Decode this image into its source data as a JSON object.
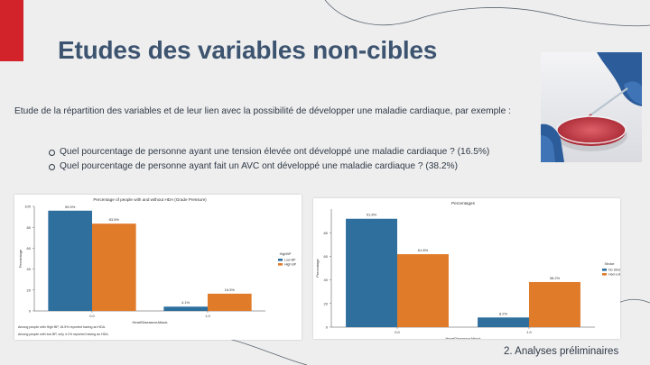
{
  "slide": {
    "title": "Etudes des variables non-cibles",
    "intro": "Etude de la répartition des variables et de leur lien avec la possibilité de développer une maladie cardiaque, par exemple :",
    "bullets": [
      "Quel pourcentage de personne ayant une tension élevée ont développé une maladie cardiaque ? (16.5%)",
      "Quel pourcentage de personne ayant fait un AVC ont développé une maladie cardiaque ? (38.2%)"
    ],
    "footer": "2. Analyses préliminaires",
    "accent_color": "#d2232a",
    "title_color": "#3d5470"
  },
  "photo": {
    "icon": "lab-petri-dish-photo"
  },
  "chart_data": [
    {
      "type": "bar",
      "title": "Percentage of people with and without HDA (Grade Pressure)",
      "xlabel": "HeartDiseaseorAttack",
      "ylabel": "Percentage",
      "categories": [
        "0.0",
        "1.0"
      ],
      "ylim": [
        0,
        100
      ],
      "yticks": [
        0,
        20,
        40,
        60,
        80,
        100
      ],
      "legend_title": "HighBP",
      "legend_position": "right",
      "series": [
        {
          "name": "Low BP",
          "color": "#2e6f9e",
          "values": [
            95.9,
            4.1
          ],
          "labels": [
            "95.9%",
            "4.1%"
          ]
        },
        {
          "name": "High BP",
          "color": "#e07b2a",
          "values": [
            83.5,
            16.5
          ],
          "labels": [
            "83.5%",
            "16.5%"
          ]
        }
      ],
      "notes": [
        "Among people with High BP, 16.5% reported having an HDA.",
        "Among people with low BP, only 4.1% reported having an HDA."
      ]
    },
    {
      "type": "bar",
      "title": "Percentages",
      "xlabel": "HeartDiseaseorAttack",
      "ylabel": "Percentage",
      "categories": [
        "0.0",
        "1.0"
      ],
      "ylim": [
        0,
        100
      ],
      "yticks": [
        0,
        20,
        40,
        60,
        80
      ],
      "legend_title": "Stroke",
      "legend_position": "right",
      "series": [
        {
          "name": "No Stroke",
          "color": "#2e6f9e",
          "values": [
            91.8,
            8.2
          ],
          "labels": [
            "91.8%",
            "8.2%"
          ]
        },
        {
          "name": "Had a stroke",
          "color": "#e07b2a",
          "values": [
            61.8,
            38.2
          ],
          "labels": [
            "61.8%",
            "38.2%"
          ]
        }
      ],
      "notes": []
    }
  ]
}
